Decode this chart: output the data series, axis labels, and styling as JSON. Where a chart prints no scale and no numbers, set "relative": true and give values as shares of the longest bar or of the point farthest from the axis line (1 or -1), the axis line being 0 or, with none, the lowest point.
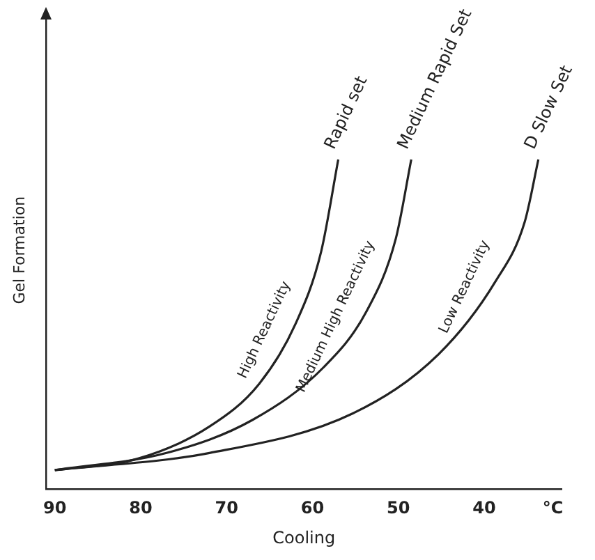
{
  "chart_data": {
    "type": "line",
    "relative": true,
    "xlabel": "Cooling",
    "ylabel": "Gel Formation",
    "tick_labels": "x",
    "grid": false,
    "legend": false,
    "marker": "none",
    "line_style": "solid",
    "xlim": [
      91,
      31
    ],
    "xticks": [
      90,
      80,
      70,
      60,
      50,
      40,
      {
        "value": 32,
        "label": "°C"
      }
    ],
    "series": [
      {
        "name": "Rapid set",
        "color": "#222222",
        "x": [
          90,
          80.3,
          72,
          66.2,
          62,
          59,
          57
        ],
        "values": [
          0.058,
          0.093,
          0.19,
          0.32,
          0.5,
          0.72,
          1
        ]
      },
      {
        "name": "Medium Rapid Set",
        "color": "#222222",
        "x": [
          90,
          77,
          67,
          58.7,
          53.7,
          50.3,
          48.5
        ],
        "values": [
          0.058,
          0.11,
          0.21,
          0.37,
          0.54,
          0.76,
          1
        ]
      },
      {
        "name": "D Slow Set",
        "color": "#222222",
        "x": [
          90,
          72,
          55.3,
          45.3,
          38.7,
          35.3,
          33.7
        ],
        "values": [
          0.058,
          0.11,
          0.23,
          0.41,
          0.63,
          0.81,
          1
        ]
      }
    ],
    "annotations": [
      "High Reactivity",
      "Medium High Reactivity",
      "Low Reactivity"
    ]
  }
}
